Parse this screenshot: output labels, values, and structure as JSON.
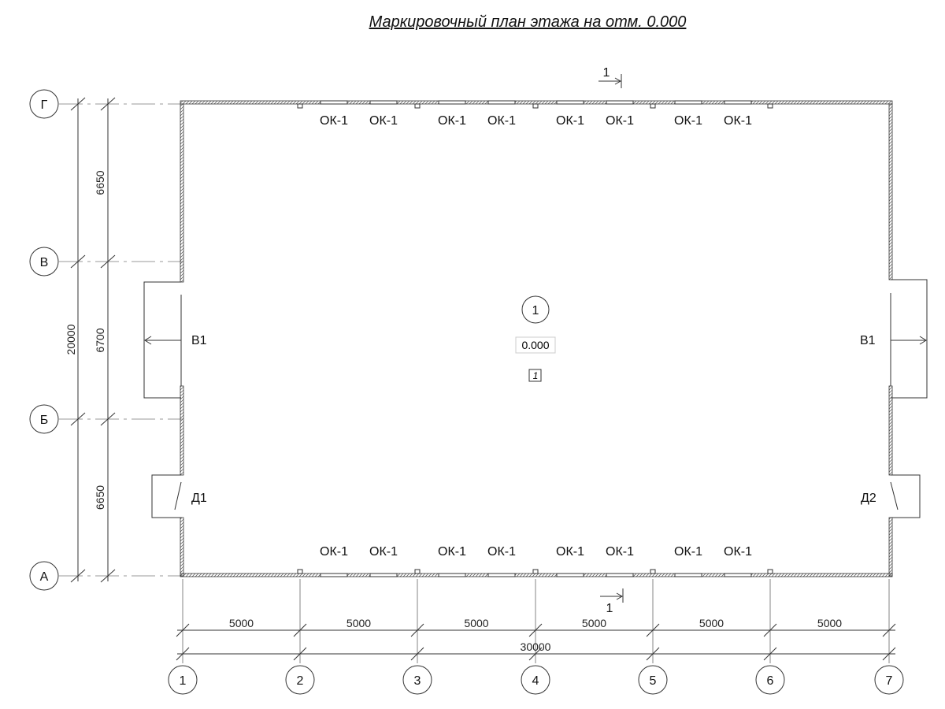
{
  "title": "Маркировочный план этажа на отм. 0.000",
  "section_mark": "1",
  "room": {
    "number": "1",
    "elevation": "0.000",
    "type_tag": "1"
  },
  "window_label": "ОК-1",
  "gate_label": "В1",
  "door_left": "Д1",
  "door_right": "Д2",
  "row_axes": [
    "Г",
    "В",
    "Б",
    "А"
  ],
  "col_axes": [
    "1",
    "2",
    "3",
    "4",
    "5",
    "6",
    "7"
  ],
  "row_dims": [
    "6650",
    "6700",
    "6650"
  ],
  "row_total": "20000",
  "col_dims": [
    "5000",
    "5000",
    "5000",
    "5000",
    "5000",
    "5000"
  ],
  "col_total": "30000"
}
